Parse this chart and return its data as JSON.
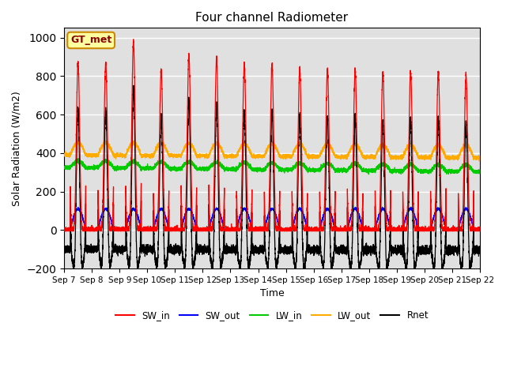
{
  "title": "Four channel Radiometer",
  "xlabel": "Time",
  "ylabel": "Solar Radiation (W/m2)",
  "ylim": [
    -200,
    1050
  ],
  "x_tick_labels": [
    "Sep 7",
    "Sep 8",
    "Sep 9",
    "Sep 10",
    "Sep 11",
    "Sep 12",
    "Sep 13",
    "Sep 14",
    "Sep 15",
    "Sep 16",
    "Sep 17",
    "Sep 18",
    "Sep 19",
    "Sep 20",
    "Sep 21",
    "Sep 22"
  ],
  "station_label": "GT_met",
  "background_color": "#e0e0e0",
  "legend": [
    {
      "label": "SW_in",
      "color": "#ff0000"
    },
    {
      "label": "SW_out",
      "color": "#0000ff"
    },
    {
      "label": "LW_in",
      "color": "#00cc00"
    },
    {
      "label": "LW_out",
      "color": "#ffaa00"
    },
    {
      "label": "Rnet",
      "color": "#000000"
    }
  ],
  "sw_in_peaks": [
    870,
    870,
    980,
    830,
    910,
    890,
    860,
    855,
    840,
    830,
    830,
    820,
    825,
    820,
    800
  ],
  "sw_out_peak": 110,
  "lw_in_base": 325,
  "lw_out_base": 390,
  "rnet_night": -100,
  "num_days": 15
}
